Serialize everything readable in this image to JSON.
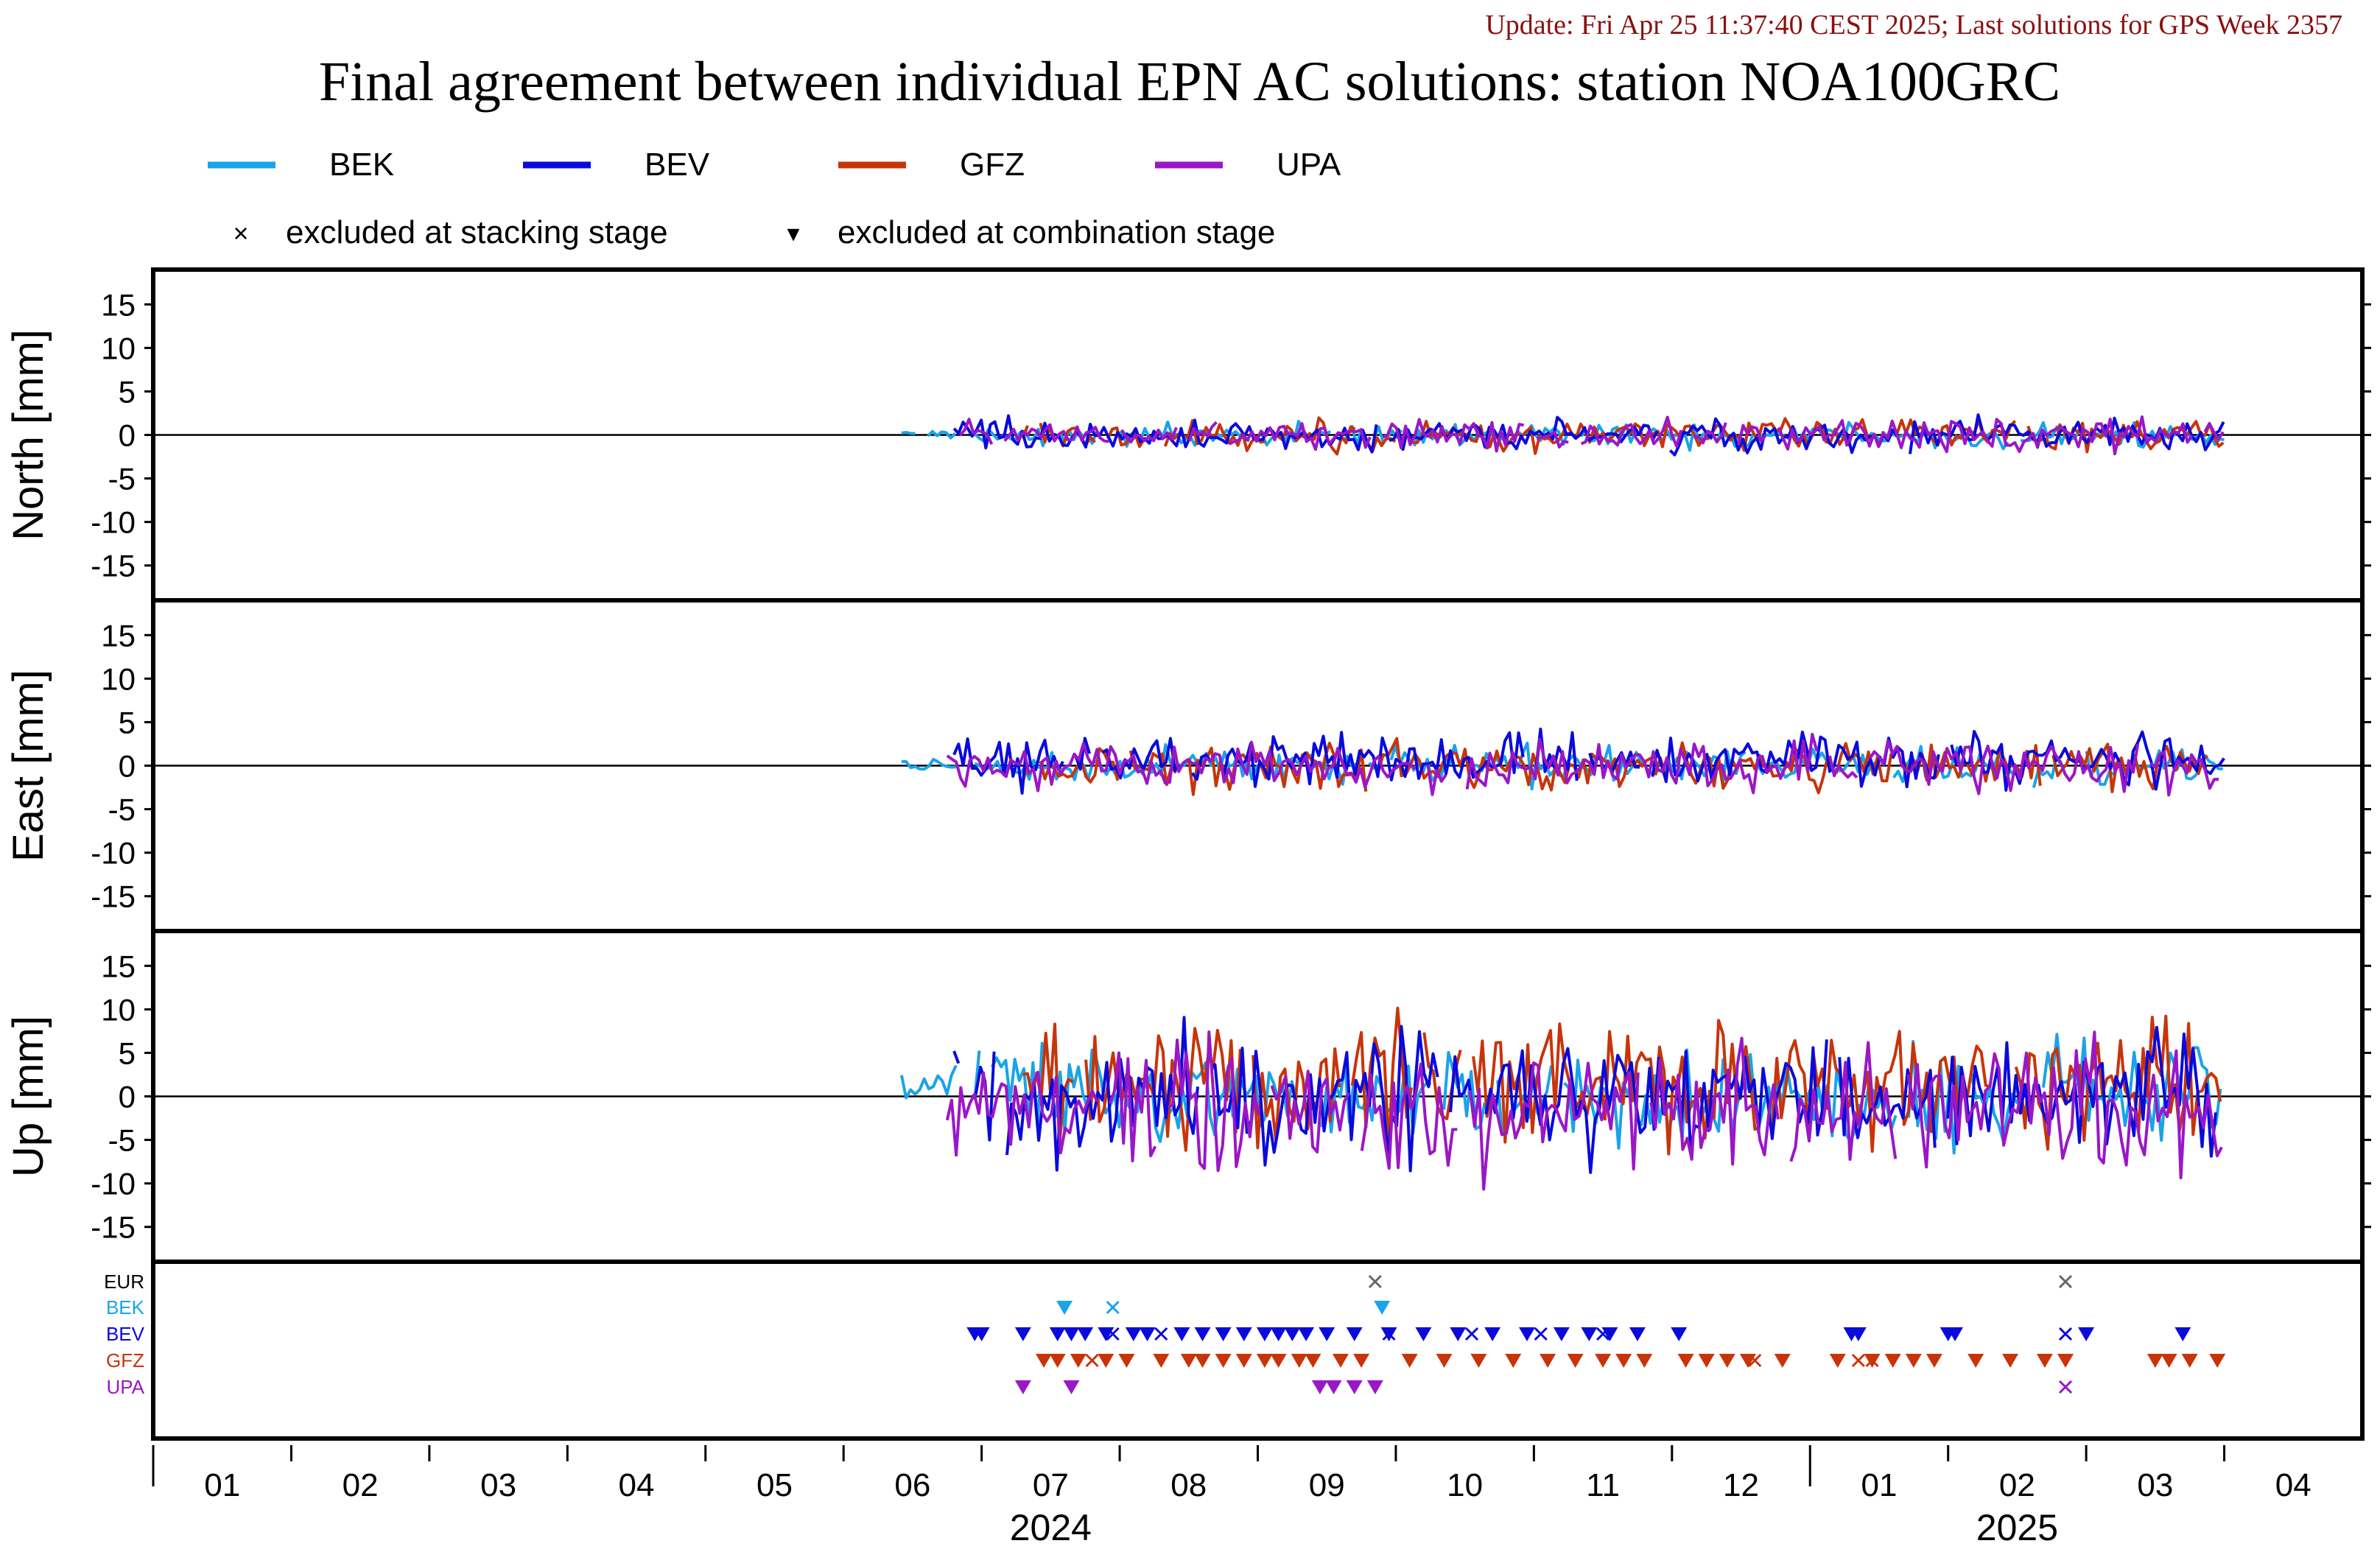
{
  "header": {
    "update_text": "Update: Fri Apr 25 11:37:40 CEST 2025; Last solutions for GPS Week 2357",
    "title": "Final agreement between individual EPN AC solutions: station NOA100GRC"
  },
  "legend": {
    "series": [
      {
        "name": "BEK",
        "color": "#1aa3ea"
      },
      {
        "name": "BEV",
        "color": "#0a0adc"
      },
      {
        "name": "GFZ",
        "color": "#c8340a"
      },
      {
        "name": "UPA",
        "color": "#9a17c6"
      }
    ],
    "marker_stacking_symbol": "×",
    "marker_stacking_label": "excluded at stacking stage",
    "marker_combination_symbol": "▾",
    "marker_combination_label": "excluded at combination stage"
  },
  "chart_data": {
    "type": "line",
    "panels": [
      {
        "key": "north",
        "ylabel": "North [mm]",
        "amp": 1.6
      },
      {
        "key": "east",
        "ylabel": "East [mm]",
        "amp": 2.6
      },
      {
        "key": "up",
        "ylabel": "Up [mm]",
        "amp": 6.5
      }
    ],
    "yticks": [
      15,
      10,
      5,
      0,
      -5,
      -10,
      -15
    ],
    "ylim": [
      -19,
      19
    ],
    "grid": false,
    "xlim_months": [
      0,
      16
    ],
    "month_ticks": [
      "01",
      "02",
      "03",
      "04",
      "05",
      "06",
      "07",
      "08",
      "09",
      "10",
      "11",
      "12",
      "01",
      "02",
      "03",
      "04"
    ],
    "year_labels": [
      {
        "label": "2024",
        "month_index": 6
      },
      {
        "label": "2025",
        "month_index": 13
      }
    ],
    "series_spans_months": {
      "BEK": [
        5.42,
        15.0
      ],
      "BEV": [
        5.8,
        15.0
      ],
      "GFZ": [
        6.3,
        15.0
      ],
      "UPA": [
        5.75,
        15.0
      ]
    },
    "exclusions": {
      "rows": [
        {
          "label": "EUR",
          "color": "#000000"
        },
        {
          "label": "BEK",
          "color": "#1aa3ea"
        },
        {
          "label": "BEV",
          "color": "#0a0adc"
        },
        {
          "label": "GFZ",
          "color": "#c8340a"
        },
        {
          "label": "UPA",
          "color": "#9a17c6"
        }
      ],
      "stacking_months": {
        "EUR": [
          8.85,
          13.85
        ],
        "BEK": [
          6.95
        ],
        "BEV": [
          6.95,
          7.3,
          8.95,
          9.55,
          10.05,
          10.5,
          13.85
        ],
        "GFZ": [
          6.8,
          11.6,
          12.35,
          12.45
        ],
        "UPA": [
          13.85
        ]
      },
      "combination_months": {
        "BEK": [
          6.6,
          8.9
        ],
        "BEV": [
          5.95,
          6.0,
          6.3,
          6.55,
          6.65,
          6.75,
          6.9,
          7.1,
          7.2,
          7.45,
          7.6,
          7.75,
          7.9,
          8.05,
          8.15,
          8.25,
          8.35,
          8.5,
          8.7,
          8.95,
          9.2,
          9.45,
          9.7,
          9.95,
          10.2,
          10.4,
          10.55,
          10.75,
          11.05,
          12.3,
          12.35,
          13.0,
          13.05,
          14.0,
          14.7
        ],
        "GFZ": [
          6.45,
          6.55,
          6.7,
          6.9,
          7.05,
          7.3,
          7.5,
          7.6,
          7.75,
          7.9,
          8.05,
          8.15,
          8.3,
          8.4,
          8.6,
          8.75,
          9.1,
          9.35,
          9.6,
          9.85,
          10.1,
          10.3,
          10.5,
          10.65,
          10.8,
          11.1,
          11.25,
          11.4,
          11.55,
          11.8,
          12.2,
          12.45,
          12.6,
          12.75,
          12.9,
          13.2,
          13.45,
          13.7,
          13.85,
          14.5,
          14.6,
          14.75,
          14.95
        ],
        "UPA": [
          6.3,
          6.65,
          8.45,
          8.55,
          8.7,
          8.85
        ]
      }
    }
  }
}
